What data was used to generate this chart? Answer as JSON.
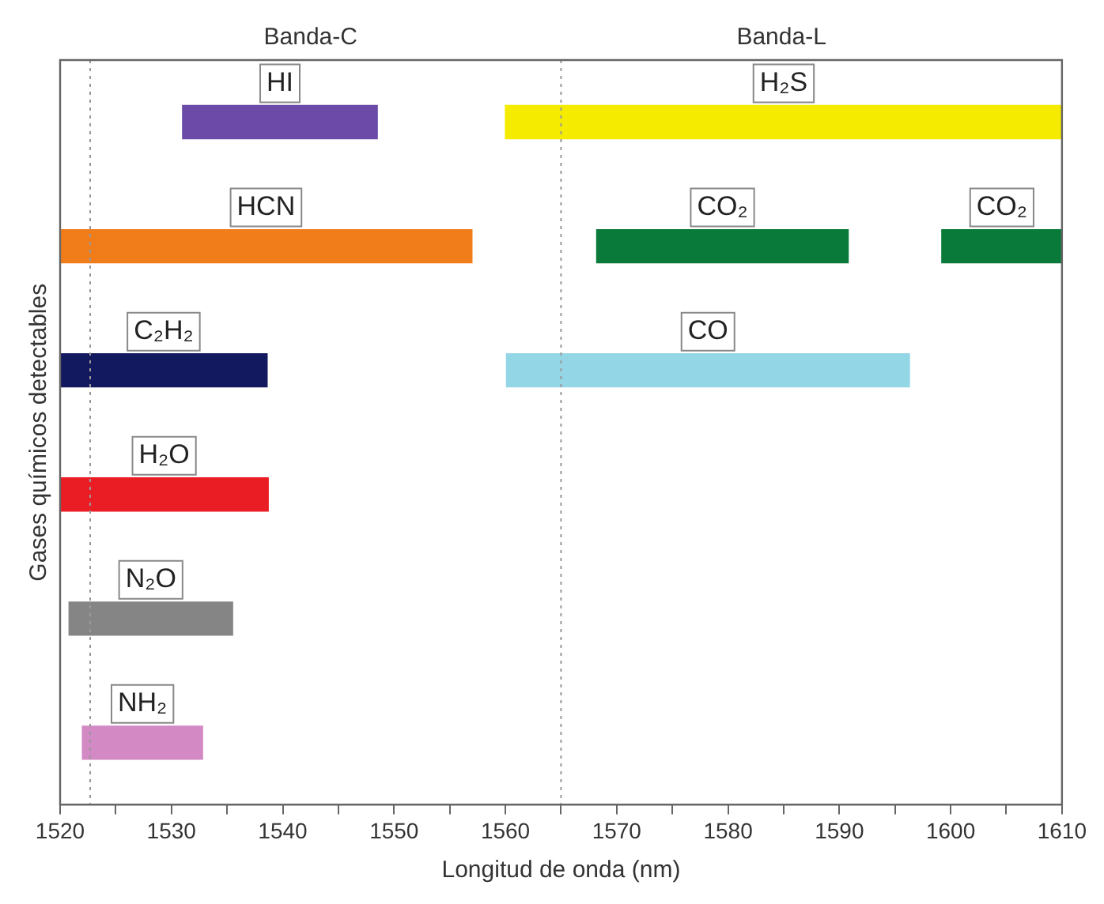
{
  "chart_data": {
    "type": "bar",
    "orientation": "horizontal",
    "xlabel": "Longitud de onda (nm)",
    "ylabel": "Gases químicos detectables",
    "categories": [
      null,
      null,
      null,
      null,
      null,
      null
    ],
    "series": [
      {
        "name": "HI",
        "color": "#6b4aa8",
        "values": [
          17.5,
          null,
          null,
          null,
          null,
          null
        ],
        "base": [
          1531,
          null,
          null,
          null,
          null,
          null
        ]
      },
      {
        "name": "H₂S",
        "color": "#f5eb00",
        "values": [
          50,
          null,
          null,
          null,
          null,
          null
        ],
        "base": [
          1560,
          null,
          null,
          null,
          null,
          null
        ]
      },
      {
        "name": "HCN",
        "color": "#f07d1a",
        "values": [
          null,
          37,
          null,
          null,
          null,
          null
        ],
        "base": [
          null,
          1520,
          null,
          null,
          null,
          null
        ]
      },
      {
        "name": "CO₂",
        "color": "#0a7a3a",
        "values": [
          null,
          22.6,
          null,
          null,
          null,
          null
        ],
        "base": [
          null,
          1568.2,
          null,
          null,
          null,
          null
        ]
      },
      {
        "name": "CO₂",
        "color": "#0a7a3a",
        "values": [
          null,
          10.8,
          null,
          null,
          null,
          null
        ],
        "base": [
          null,
          1599.2,
          null,
          null,
          null,
          null
        ]
      },
      {
        "name": "C₂H₂",
        "color": "#12195e",
        "values": [
          null,
          null,
          18.6,
          null,
          null,
          null
        ],
        "base": [
          null,
          null,
          1520,
          null,
          null,
          null
        ]
      },
      {
        "name": "CO",
        "color": "#93d6e6",
        "values": [
          null,
          null,
          36.2,
          null,
          null,
          null
        ],
        "base": [
          null,
          null,
          1560.1,
          null,
          null,
          null
        ]
      },
      {
        "name": "H₂O",
        "color": "#ea1c24",
        "values": [
          null,
          null,
          null,
          18.7,
          null,
          null
        ],
        "base": [
          null,
          null,
          null,
          1520,
          null,
          null
        ]
      },
      {
        "name": "N₂O",
        "color": "#858585",
        "values": [
          null,
          null,
          null,
          null,
          14.7,
          null
        ],
        "base": [
          null,
          null,
          null,
          null,
          1520.8,
          null
        ]
      },
      {
        "name": "NH₂",
        "color": "#d389c4",
        "values": [
          null,
          null,
          null,
          null,
          null,
          10.8
        ],
        "base": [
          null,
          null,
          null,
          null,
          null,
          1522
        ]
      }
    ],
    "xlim": [
      1520,
      1610
    ],
    "xticks": [
      1520,
      {
        "value": 1525,
        "label": null
      },
      1530,
      {
        "value": 1535,
        "label": null
      },
      1540,
      {
        "value": 1545,
        "label": null
      },
      1550,
      {
        "value": 1555,
        "label": null
      },
      1560,
      {
        "value": 1565,
        "label": null
      },
      1570,
      {
        "value": 1575,
        "label": null
      },
      1580,
      {
        "value": 1585,
        "label": null
      },
      1590,
      {
        "value": 1595,
        "label": null
      },
      1600,
      {
        "value": 1605,
        "label": null
      },
      1610
    ],
    "ref_lines": [
      {
        "axis": "x",
        "value": 1522.7,
        "line_style": "dotted",
        "color": "#999999"
      },
      {
        "axis": "x",
        "value": 1565,
        "line_style": "dotted",
        "color": "#999999"
      }
    ],
    "annotations": [
      "Banda-C",
      "Banda-L"
    ],
    "grid": false,
    "legend": false,
    "tick_labels": "x"
  }
}
